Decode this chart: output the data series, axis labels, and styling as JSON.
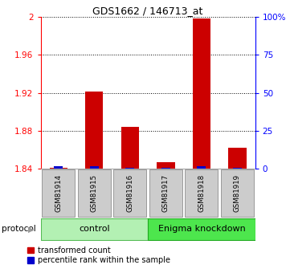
{
  "title": "GDS1662 / 146713_at",
  "samples": [
    "GSM81914",
    "GSM81915",
    "GSM81916",
    "GSM81917",
    "GSM81918",
    "GSM81919"
  ],
  "red_values": [
    1.841,
    1.921,
    1.884,
    1.847,
    1.998,
    1.862
  ],
  "blue_percentile": [
    2,
    2,
    1,
    1,
    2,
    1
  ],
  "ylim_left": [
    1.84,
    2.0
  ],
  "ylim_right": [
    0,
    100
  ],
  "yticks_left": [
    1.84,
    1.88,
    1.92,
    1.96,
    2.0
  ],
  "yticks_right": [
    0,
    25,
    50,
    75,
    100
  ],
  "ytick_labels_left": [
    "1.84",
    "1.88",
    "1.92",
    "1.96",
    "2"
  ],
  "ytick_labels_right": [
    "0",
    "25",
    "50",
    "75",
    "100%"
  ],
  "group_control_label": "control",
  "group_enigma_label": "Enigma knockdown",
  "group_control_color": "#b3f0b3",
  "group_enigma_color": "#4de64d",
  "bar_color_red": "#cc0000",
  "bar_color_blue": "#0000cc",
  "red_bar_width": 0.5,
  "blue_bar_width": 0.25,
  "protocol_label": "protocol",
  "legend_red": "transformed count",
  "legend_blue": "percentile rank within the sample",
  "background_color": "#ffffff",
  "sample_box_color": "#cccccc",
  "title_fontsize": 9
}
